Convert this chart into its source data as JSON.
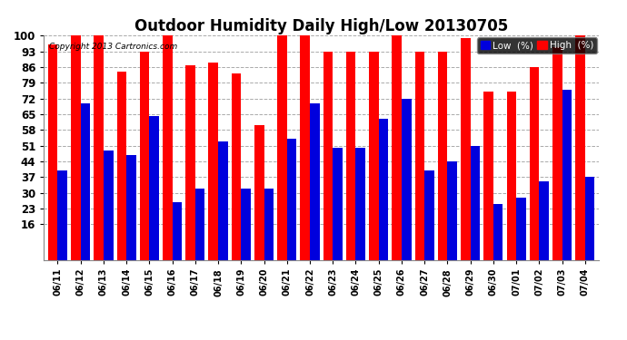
{
  "title": "Outdoor Humidity Daily High/Low 20130705",
  "copyright": "Copyright 2013 Cartronics.com",
  "dates": [
    "06/11",
    "06/12",
    "06/13",
    "06/14",
    "06/15",
    "06/16",
    "06/17",
    "06/18",
    "06/19",
    "06/20",
    "06/21",
    "06/22",
    "06/23",
    "06/24",
    "06/25",
    "06/26",
    "06/27",
    "06/28",
    "06/29",
    "06/30",
    "07/01",
    "07/02",
    "07/03",
    "07/04"
  ],
  "high": [
    96,
    100,
    100,
    84,
    93,
    100,
    87,
    88,
    83,
    60,
    100,
    100,
    93,
    93,
    93,
    100,
    93,
    93,
    99,
    75,
    75,
    86,
    95,
    100
  ],
  "low": [
    40,
    70,
    49,
    47,
    64,
    26,
    32,
    53,
    32,
    32,
    54,
    70,
    50,
    50,
    63,
    72,
    40,
    44,
    51,
    25,
    28,
    35,
    76,
    37
  ],
  "high_color": "#ff0000",
  "low_color": "#0000dd",
  "bg_color": "#ffffff",
  "grid_color": "#aaaaaa",
  "ylim_min": 0,
  "ylim_max": 100,
  "yaxis_min": 16,
  "yticks": [
    16,
    23,
    30,
    37,
    44,
    51,
    58,
    65,
    72,
    79,
    86,
    93,
    100
  ],
  "title_fontsize": 12,
  "bar_width": 0.42,
  "legend_low_label": "Low  (%)",
  "legend_high_label": "High  (%)"
}
